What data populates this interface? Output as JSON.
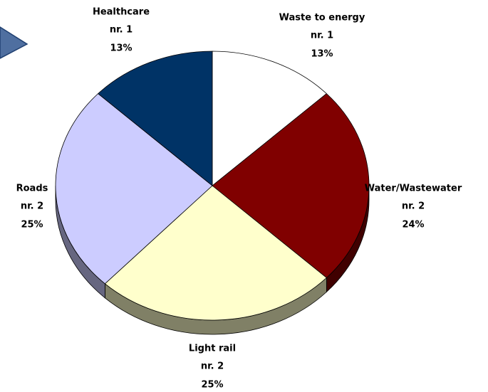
{
  "chart_data": {
    "type": "pie",
    "categories": [
      "Waste to energy",
      "Water/Wastewater",
      "Light rail",
      "Roads",
      "Healthcare"
    ],
    "rank_labels": [
      "nr. 1",
      "nr. 2",
      "nr. 2",
      "nr. 2",
      "nr. 1"
    ],
    "values": [
      13,
      24,
      25,
      25,
      13
    ],
    "value_labels": [
      "13%",
      "24%",
      "25%",
      "25%",
      "13%"
    ],
    "colors": [
      "#ffffff",
      "#800000",
      "#ffffcc",
      "#ccccff",
      "#003366"
    ]
  }
}
